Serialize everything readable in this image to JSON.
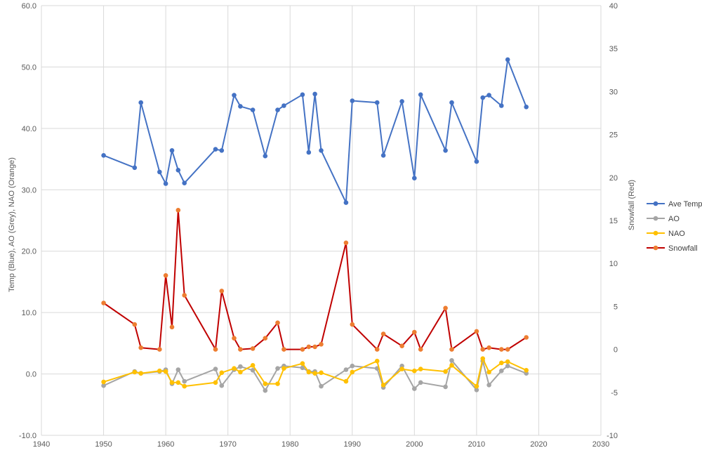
{
  "chart_data": {
    "type": "line",
    "title": "",
    "xlabel": "",
    "ylabel_left": "Temp (Blue), AO (Grey), NAO (Orange)",
    "ylabel_right": "Snowfall (Red)",
    "xlim": [
      1940,
      2030
    ],
    "ylim_left": [
      -10,
      60
    ],
    "ylim_right": [
      -10,
      40
    ],
    "x_ticks": [
      "1940",
      "1950",
      "1960",
      "1970",
      "1980",
      "1990",
      "2000",
      "2010",
      "2020",
      "2030"
    ],
    "y_left_ticks": [
      "-10.0",
      "0.0",
      "10.0",
      "20.0",
      "30.0",
      "40.0",
      "50.0",
      "60.0"
    ],
    "y_right_ticks": [
      "-10",
      "-5",
      "0",
      "5",
      "10",
      "15",
      "20",
      "25",
      "30",
      "35",
      "40"
    ],
    "grid": "horizontal and vertical",
    "legend_position": "right",
    "x": [
      1950,
      1955,
      1956,
      1959,
      1960,
      1961,
      1962,
      1963,
      1968,
      1969,
      1971,
      1972,
      1974,
      1976,
      1978,
      1979,
      1982,
      1983,
      1984,
      1985,
      1989,
      1990,
      1994,
      1995,
      1998,
      2000,
      2001,
      2005,
      2006,
      2010,
      2011,
      2012,
      2014,
      2015,
      2018
    ],
    "series": [
      {
        "name": "Ave Temp",
        "axis": "left",
        "color": "#4472C4",
        "values": [
          35.6,
          33.6,
          44.2,
          32.9,
          31.0,
          36.4,
          33.2,
          31.1,
          36.6,
          36.4,
          45.4,
          43.6,
          43.0,
          35.5,
          43.0,
          43.7,
          45.5,
          36.1,
          45.6,
          36.4,
          27.9,
          44.5,
          44.2,
          35.6,
          44.4,
          31.9,
          45.5,
          36.4,
          44.2,
          34.6,
          45.0,
          45.4,
          43.7,
          51.2,
          43.5
        ]
      },
      {
        "name": "AO",
        "axis": "left",
        "color": "#A5A5A5",
        "values": [
          -1.9,
          0.4,
          0.1,
          0.4,
          0.7,
          -1.6,
          0.7,
          -1.2,
          0.8,
          -1.9,
          0.7,
          1.2,
          0.6,
          -2.7,
          0.9,
          1.3,
          1.0,
          0.4,
          0.4,
          -2.0,
          0.7,
          1.3,
          0.9,
          -2.2,
          1.3,
          -2.4,
          -1.4,
          -2.1,
          2.2,
          -2.6,
          2.1,
          -1.8,
          0.5,
          1.3,
          0.1
        ]
      },
      {
        "name": "NAO",
        "axis": "left",
        "color": "#FFC000",
        "values": [
          -1.3,
          0.3,
          0.1,
          0.5,
          0.4,
          -1.4,
          -1.4,
          -2.0,
          -1.4,
          0.2,
          0.9,
          0.3,
          1.4,
          -1.6,
          -1.6,
          0.9,
          1.7,
          0.3,
          0.1,
          0.2,
          -1.2,
          0.3,
          2.1,
          -1.8,
          0.8,
          0.5,
          0.8,
          0.4,
          1.4,
          -2.0,
          2.5,
          0.3,
          1.8,
          2.0,
          0.6
        ]
      },
      {
        "name": "Snowfall",
        "axis": "right",
        "color": "#C00000",
        "marker_color": "#ED7D31",
        "values": [
          5.4,
          2.9,
          0.2,
          0.0,
          8.6,
          2.6,
          16.2,
          6.3,
          0.0,
          6.8,
          1.3,
          0.0,
          0.1,
          1.3,
          3.1,
          0.0,
          0.0,
          0.3,
          0.3,
          0.6,
          12.4,
          2.9,
          0.0,
          1.8,
          0.4,
          2.0,
          0.0,
          4.8,
          0.0,
          2.1,
          0.0,
          0.2,
          0.0,
          0.0,
          1.4
        ]
      }
    ]
  }
}
